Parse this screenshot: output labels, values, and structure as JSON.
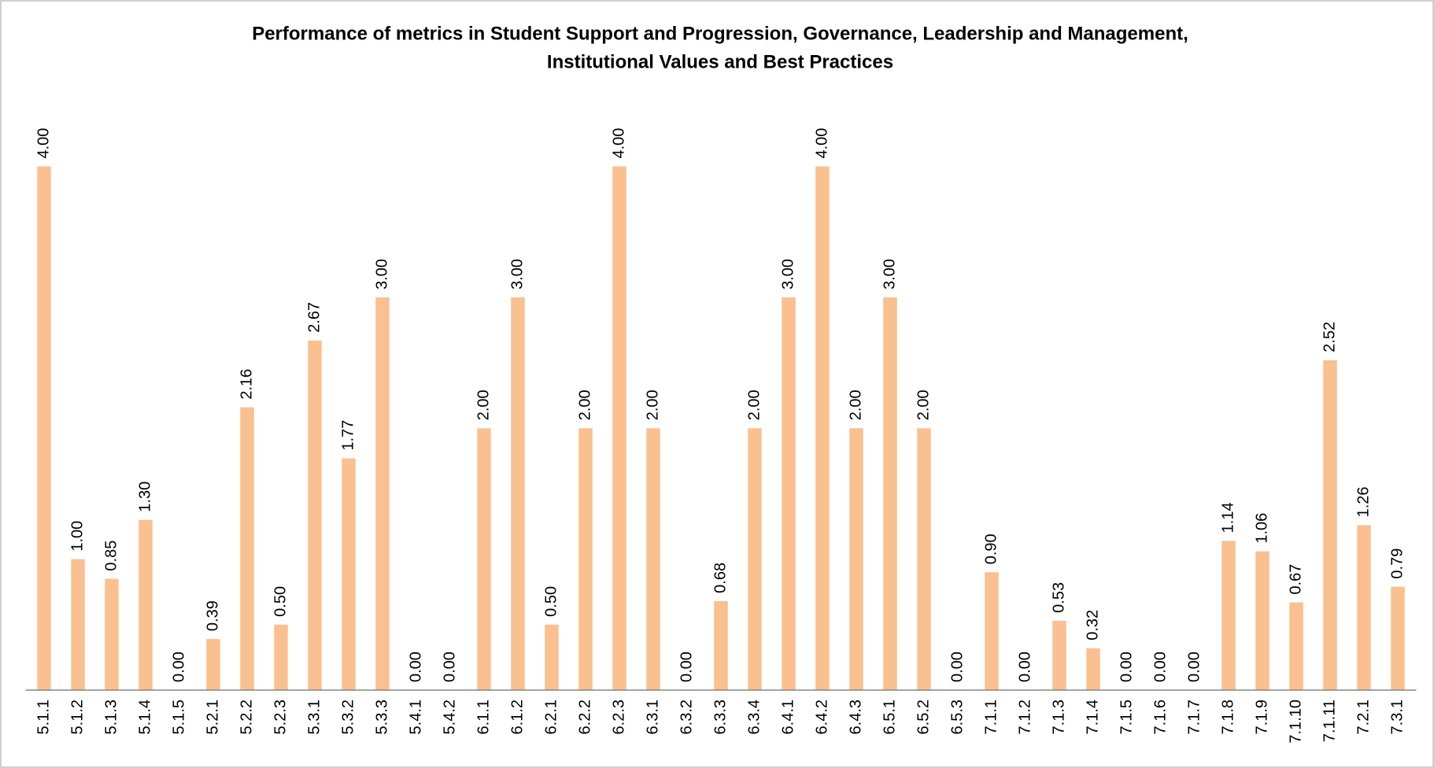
{
  "chart_data": {
    "type": "bar",
    "title": [
      "Performance of metrics in Student Support and Progression, Governance, Leadership and Management,",
      "Institutional Values and Best Practices"
    ],
    "categories": [
      "5.1.1",
      "5.1.2",
      "5.1.3",
      "5.1.4",
      "5.1.5",
      "5.2.1",
      "5.2.2",
      "5.2.3",
      "5.3.1",
      "5.3.2",
      "5.3.3",
      "5.4.1",
      "5.4.2",
      "6.1.1",
      "6.1.2",
      "6.2.1",
      "6.2.2",
      "6.2.3",
      "6.3.1",
      "6.3.2",
      "6.3.3",
      "6.3.4",
      "6.4.1",
      "6.4.2",
      "6.4.3",
      "6.5.1",
      "6.5.2",
      "6.5.3",
      "7.1.1",
      "7.1.2",
      "7.1.3",
      "7.1.4",
      "7.1.5",
      "7.1.6",
      "7.1.7",
      "7.1.8",
      "7.1.9",
      "7.1.10",
      "7.1.11",
      "7.2.1",
      "7.3.1"
    ],
    "values": [
      4,
      1,
      0.85,
      1.3,
      0,
      0.39,
      2.16,
      0.5,
      2.67,
      1.77,
      3,
      0,
      0,
      2,
      3,
      0.5,
      2,
      4,
      2,
      0,
      0.68,
      2,
      3,
      4,
      2,
      3,
      2,
      0,
      0.9,
      0,
      0.53,
      0.32,
      0,
      0,
      0,
      1.14,
      1.06,
      0.67,
      2.52,
      1.26,
      0.79
    ],
    "value_labels": [
      "4.00",
      "1.00",
      "0.85",
      "1.30",
      "0.00",
      "0.39",
      "2.16",
      "0.50",
      "2.67",
      "1.77",
      "3.00",
      "0.00",
      "0.00",
      "2.00",
      "3.00",
      "0.50",
      "2.00",
      "4.00",
      "2.00",
      "0.00",
      "0.68",
      "2.00",
      "3.00",
      "4.00",
      "2.00",
      "3.00",
      "2.00",
      "0.00",
      "0.90",
      "0.00",
      "0.53",
      "0.32",
      "0.00",
      "0.00",
      "0.00",
      "1.14",
      "1.06",
      "0.67",
      "2.52",
      "1.26",
      "0.79"
    ],
    "color": "#fac090",
    "ylim": [
      0,
      4
    ]
  }
}
